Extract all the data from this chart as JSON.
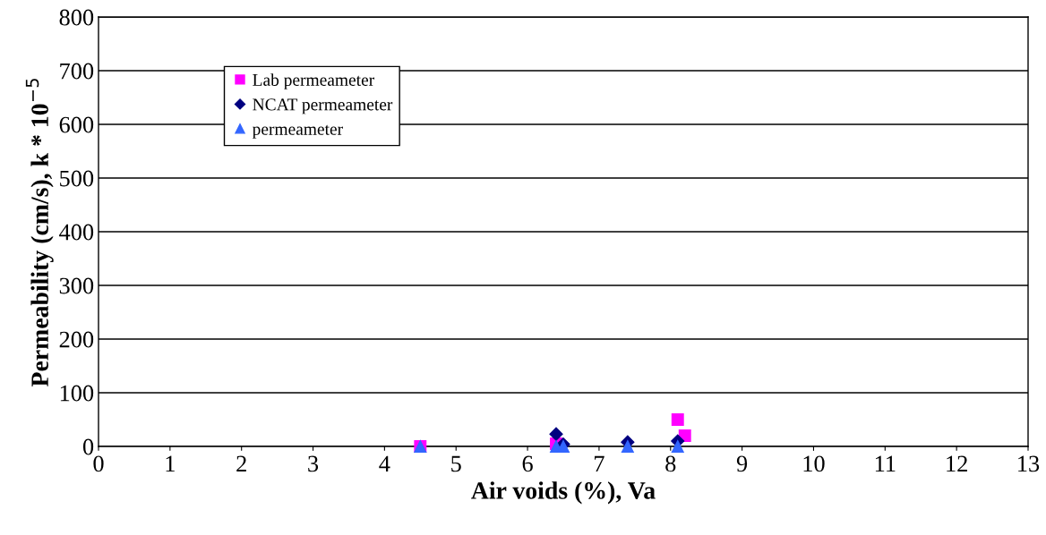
{
  "chart_data": {
    "type": "scatter",
    "xlabel": "Air voids (%), Va",
    "ylabel": "Permeability (cm/s), k * 10$^{−5}$",
    "xlim": [
      0,
      13
    ],
    "xticks": [
      0,
      1,
      2,
      3,
      4,
      5,
      6,
      7,
      8,
      9,
      10,
      11,
      12,
      13
    ],
    "ylim": [
      0,
      800
    ],
    "yticks": [
      0,
      100,
      200,
      300,
      400,
      500,
      600,
      700,
      800
    ],
    "grid": "y",
    "legend": "top left",
    "series": [
      {
        "name": "Lab permeameter",
        "color": "#ff00ff",
        "marker": "square",
        "x": [
          4.5,
          6.4,
          8.1,
          8.2
        ],
        "values": [
          0,
          5,
          50,
          20
        ]
      },
      {
        "name": "NCAT permeameter",
        "color": "#000080",
        "marker": "diamond",
        "x": [
          6.4,
          6.5,
          7.4,
          8.1
        ],
        "values": [
          23,
          4,
          8,
          10
        ]
      },
      {
        "name": "permeameter",
        "color": "#3366ff",
        "marker": "triangle",
        "x": [
          4.5,
          6.4,
          6.5,
          7.4,
          8.1
        ],
        "values": [
          0,
          0,
          0,
          0,
          0
        ]
      }
    ]
  }
}
